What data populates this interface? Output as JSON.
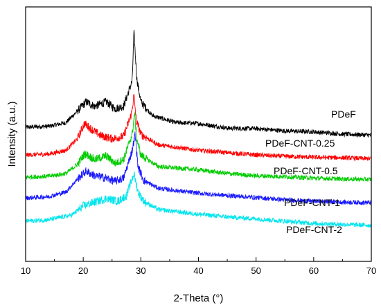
{
  "chart_data": {
    "type": "line",
    "xlabel": "2-Theta (°)",
    "ylabel": "Intensity (a.u.)",
    "xlim": [
      10,
      70
    ],
    "xticks": [
      10,
      20,
      30,
      40,
      50,
      60,
      70
    ],
    "yticks_shown": false,
    "y_offset_stacked": true,
    "legend": "inline labels at right",
    "series": [
      {
        "name": "PDeF",
        "color": "#000000",
        "points": [
          [
            10,
            2.9
          ],
          [
            14,
            2.92
          ],
          [
            17,
            3.0
          ],
          [
            19,
            3.25
          ],
          [
            20.5,
            3.45
          ],
          [
            22,
            3.35
          ],
          [
            24,
            3.45
          ],
          [
            25.5,
            3.3
          ],
          [
            27,
            3.35
          ],
          [
            28.5,
            3.9
          ],
          [
            28.8,
            4.95
          ],
          [
            29.3,
            3.95
          ],
          [
            30,
            3.45
          ],
          [
            32,
            3.15
          ],
          [
            36,
            3.0
          ],
          [
            40,
            2.98
          ],
          [
            45,
            2.88
          ],
          [
            50,
            2.87
          ],
          [
            55,
            2.82
          ],
          [
            60,
            2.8
          ],
          [
            65,
            2.75
          ],
          [
            70,
            2.73
          ]
        ]
      },
      {
        "name": "PDeF-CNT-0.25",
        "color": "#ff0000",
        "points": [
          [
            10,
            2.3
          ],
          [
            14,
            2.32
          ],
          [
            17,
            2.4
          ],
          [
            19,
            2.65
          ],
          [
            20.2,
            2.98
          ],
          [
            21.5,
            2.85
          ],
          [
            23,
            2.72
          ],
          [
            25,
            2.65
          ],
          [
            27,
            2.7
          ],
          [
            28.4,
            3.2
          ],
          [
            28.8,
            3.6
          ],
          [
            29.2,
            3.05
          ],
          [
            30,
            2.75
          ],
          [
            33,
            2.52
          ],
          [
            40,
            2.4
          ],
          [
            45,
            2.35
          ],
          [
            50,
            2.3
          ],
          [
            55,
            2.27
          ],
          [
            60,
            2.25
          ],
          [
            65,
            2.24
          ],
          [
            70,
            2.22
          ]
        ]
      },
      {
        "name": "PDeF-CNT-0.5",
        "color": "#00cc00",
        "points": [
          [
            10,
            1.82
          ],
          [
            14,
            1.84
          ],
          [
            17,
            1.9
          ],
          [
            19,
            2.1
          ],
          [
            20.3,
            2.33
          ],
          [
            22,
            2.2
          ],
          [
            24,
            2.28
          ],
          [
            25.5,
            2.12
          ],
          [
            27,
            2.2
          ],
          [
            28.5,
            2.75
          ],
          [
            28.9,
            3.2
          ],
          [
            29.3,
            2.65
          ],
          [
            30,
            2.3
          ],
          [
            33,
            2.05
          ],
          [
            40,
            1.98
          ],
          [
            45,
            1.9
          ],
          [
            50,
            1.85
          ],
          [
            55,
            1.83
          ],
          [
            60,
            1.8
          ],
          [
            65,
            1.78
          ],
          [
            70,
            1.77
          ]
        ]
      },
      {
        "name": "PDeF-CNT-1",
        "color": "#1a1aff",
        "points": [
          [
            10,
            1.37
          ],
          [
            14,
            1.4
          ],
          [
            17,
            1.5
          ],
          [
            19,
            1.78
          ],
          [
            20.5,
            1.95
          ],
          [
            22,
            1.85
          ],
          [
            24,
            1.8
          ],
          [
            25.5,
            1.73
          ],
          [
            27,
            1.8
          ],
          [
            28.5,
            2.4
          ],
          [
            29.0,
            2.75
          ],
          [
            29.5,
            2.05
          ],
          [
            30.5,
            1.75
          ],
          [
            33,
            1.58
          ],
          [
            38,
            1.5
          ],
          [
            42,
            1.45
          ],
          [
            50,
            1.38
          ],
          [
            55,
            1.33
          ],
          [
            60,
            1.3
          ],
          [
            65,
            1.28
          ],
          [
            70,
            1.27
          ]
        ]
      },
      {
        "name": "PDeF-CNT-2",
        "color": "#00e5ee",
        "points": [
          [
            10,
            0.87
          ],
          [
            14,
            0.9
          ],
          [
            18,
            1.0
          ],
          [
            20,
            1.2
          ],
          [
            22,
            1.28
          ],
          [
            24,
            1.36
          ],
          [
            26,
            1.3
          ],
          [
            27.5,
            1.42
          ],
          [
            28.8,
            1.9
          ],
          [
            29.5,
            1.5
          ],
          [
            30.5,
            1.3
          ],
          [
            33,
            1.12
          ],
          [
            40,
            1.02
          ],
          [
            45,
            0.96
          ],
          [
            50,
            0.92
          ],
          [
            55,
            0.87
          ],
          [
            60,
            0.82
          ],
          [
            65,
            0.8
          ],
          [
            70,
            0.78
          ]
        ]
      }
    ]
  }
}
